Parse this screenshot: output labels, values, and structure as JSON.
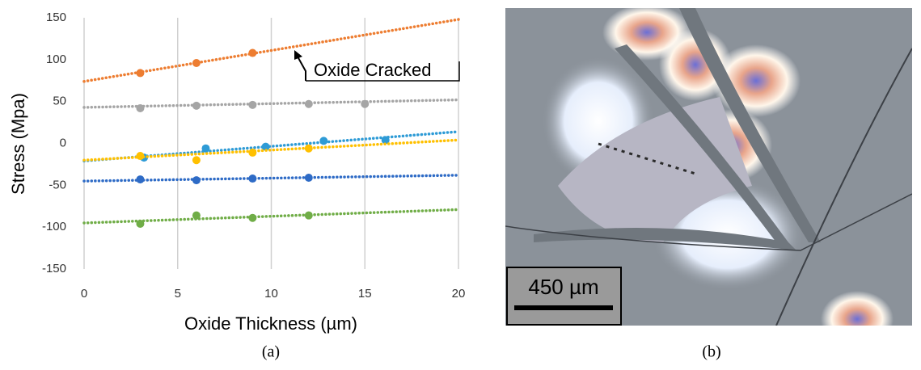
{
  "chart_data": {
    "type": "scatter",
    "x_label": "Oxide Thickness (µm)",
    "y_label": "Stress (Mpa)",
    "annotation": "Oxide Cracked",
    "xlim": [
      0,
      20
    ],
    "xticks": [
      0,
      5,
      10,
      15,
      20
    ],
    "ylim": [
      -150,
      150
    ],
    "yticks": [
      -150,
      -100,
      -50,
      0,
      50,
      100,
      150
    ],
    "grid": "x",
    "series": [
      {
        "color": "#ed7d31",
        "x": [
          3,
          6,
          9
        ],
        "values": [
          84,
          96,
          108
        ],
        "trendline": {
          "x": [
            0,
            20
          ],
          "values": [
            74,
            148
          ]
        }
      },
      {
        "color": "#a5a5a5",
        "x": [
          3,
          6,
          9,
          12,
          15
        ],
        "values": [
          42,
          45,
          46,
          47,
          47
        ],
        "trendline": {
          "x": [
            0,
            20
          ],
          "values": [
            43,
            52
          ]
        }
      },
      {
        "color": "#2e9bd6",
        "x": [
          3.2,
          6.5,
          9.7,
          12.8,
          16.1
        ],
        "values": [
          -17,
          -6,
          -4,
          3,
          4
        ],
        "trendline": {
          "x": [
            0,
            20
          ],
          "values": [
            -21,
            14
          ]
        }
      },
      {
        "color": "#ffc000",
        "x": [
          3,
          6,
          9,
          12
        ],
        "values": [
          -15,
          -20,
          -11,
          -6
        ],
        "trendline": {
          "x": [
            0,
            20
          ],
          "values": [
            -20,
            4
          ]
        }
      },
      {
        "color": "#2e6bc6",
        "x": [
          3,
          6,
          9,
          12
        ],
        "values": [
          -43,
          -44,
          -42,
          -41
        ],
        "trendline": {
          "x": [
            0,
            20
          ],
          "values": [
            -45,
            -38
          ]
        }
      },
      {
        "color": "#70ad47",
        "x": [
          3,
          6,
          9,
          12
        ],
        "values": [
          -96,
          -86,
          -89,
          -86
        ],
        "trendline": {
          "x": [
            0,
            20
          ],
          "values": [
            -95,
            -79
          ]
        }
      }
    ]
  },
  "panels": {
    "a": "(a)",
    "b": "(b)"
  },
  "micrograph": {
    "scale_bar": "450 µm"
  }
}
